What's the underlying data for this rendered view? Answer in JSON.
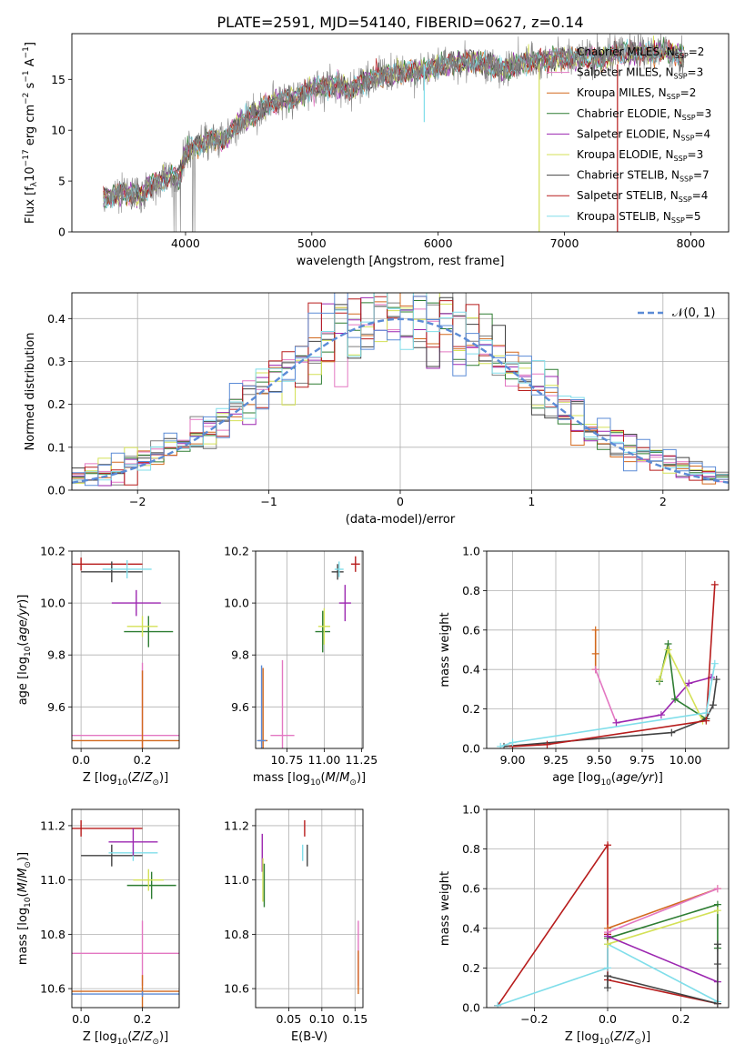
{
  "figure_title": "PLATE=2591, MJD=54140, FIBERID=0627, z=0.14",
  "model_colors": {
    "Chabrier MILES": "#7f7f7f",
    "Salpeter MILES": "#e377c2",
    "Kroupa MILES": "#d2691e",
    "Chabrier ELODIE": "#2e7d32",
    "Salpeter ELODIE": "#9c27b0",
    "Kroupa ELODIE": "#d4e157",
    "Chabrier STELIB": "#424242",
    "Salpeter STELIB": "#b71c1c",
    "Kroupa STELIB": "#80deea"
  },
  "chart_data": [
    {
      "id": "spectrum",
      "type": "line",
      "xlabel": "wavelength [Angstrom, rest frame]",
      "ylabel": "Flux [f_λ 10^-17 erg cm^-2 s^-1 A^-1]",
      "xlim": [
        3100,
        8300
      ],
      "ylim": [
        0,
        19.5
      ],
      "xticks": [
        4000,
        5000,
        6000,
        7000,
        8000
      ],
      "yticks": [
        0,
        5,
        10,
        15
      ],
      "legend_position": "top-right",
      "data_series": {
        "name": "data",
        "color": "#808080"
      },
      "continuum_knots": [
        [
          3350,
          3.2
        ],
        [
          3500,
          3.8
        ],
        [
          3650,
          3.6
        ],
        [
          3720,
          4.5
        ],
        [
          3800,
          5.0
        ],
        [
          3880,
          5.5
        ],
        [
          3950,
          5.2
        ],
        [
          4000,
          7.8
        ],
        [
          4100,
          8.5
        ],
        [
          4200,
          9.2
        ],
        [
          4300,
          9.0
        ],
        [
          4400,
          10.5
        ],
        [
          4500,
          11.3
        ],
        [
          4700,
          12.8
        ],
        [
          4860,
          13.2
        ],
        [
          5000,
          14.1
        ],
        [
          5200,
          14.4
        ],
        [
          5300,
          14.0
        ],
        [
          5500,
          15.3
        ],
        [
          5700,
          15.6
        ],
        [
          5900,
          15.9
        ],
        [
          6100,
          16.6
        ],
        [
          6300,
          16.8
        ],
        [
          6500,
          16.0
        ],
        [
          6700,
          16.7
        ],
        [
          6900,
          17.0
        ],
        [
          7100,
          17.1
        ],
        [
          7300,
          17.0
        ],
        [
          7400,
          17.5
        ],
        [
          7600,
          17.6
        ],
        [
          7800,
          17.7
        ],
        [
          7950,
          17.4
        ]
      ],
      "model_legend": [
        {
          "label": "Chabrier MILES, N_SSP=2",
          "color": "#7f7f7f",
          "label_main": "Chabrier MILES, N",
          "label_sub": "SSP",
          "label_tail": "=2"
        },
        {
          "label": "Salpeter MILES, N_SSP=3",
          "color": "#e377c2",
          "label_main": "Salpeter MILES, N",
          "label_sub": "SSP",
          "label_tail": "=3"
        },
        {
          "label": "Kroupa MILES, N_SSP=2",
          "color": "#d2691e",
          "label_main": "Kroupa MILES, N",
          "label_sub": "SSP",
          "label_tail": "=2"
        },
        {
          "label": "Chabrier ELODIE, N_SSP=3",
          "color": "#2e7d32",
          "label_main": "Chabrier ELODIE, N",
          "label_sub": "SSP",
          "label_tail": "=3"
        },
        {
          "label": "Salpeter ELODIE, N_SSP=4",
          "color": "#9c27b0",
          "label_main": "Salpeter ELODIE, N",
          "label_sub": "SSP",
          "label_tail": "=4"
        },
        {
          "label": "Kroupa ELODIE, N_SSP=3",
          "color": "#d4e157",
          "label_main": "Kroupa ELODIE, N",
          "label_sub": "SSP",
          "label_tail": "=3"
        },
        {
          "label": "Chabrier STELIB, N_SSP=7",
          "color": "#424242",
          "label_main": "Chabrier STELIB, N",
          "label_sub": "SSP",
          "label_tail": "=7"
        },
        {
          "label": "Salpeter STELIB, N_SSP=4",
          "color": "#b71c1c",
          "label_main": "Salpeter STELIB, N",
          "label_sub": "SSP",
          "label_tail": "=4"
        },
        {
          "label": "Kroupa STELIB, N_SSP=5",
          "color": "#80deea",
          "label_main": "Kroupa STELIB, N",
          "label_sub": "SSP",
          "label_tail": "=5"
        }
      ]
    },
    {
      "id": "residuals",
      "type": "line",
      "xlabel": "(data-model)/error",
      "ylabel": "Normed distribution",
      "xlim": [
        -2.5,
        2.5
      ],
      "ylim": [
        0,
        0.46
      ],
      "xticks": [
        -2,
        -1,
        0,
        1,
        2
      ],
      "yticks": [
        0.0,
        0.1,
        0.2,
        0.3,
        0.4
      ],
      "grid": true,
      "legend_position": "top-right",
      "reference_curve": {
        "label": "𝒩(0, 1)",
        "color": "#5b8bd6",
        "style": "dashed"
      },
      "histogram": {
        "bin_edges_range": [
          -2.5,
          2.5
        ],
        "n_bins": 50,
        "envelope": "gaussian N(0,1) with noise",
        "series_colors": [
          "#7f7f7f",
          "#e377c2",
          "#d2691e",
          "#2e7d32",
          "#9c27b0",
          "#d4e157",
          "#424242",
          "#b71c1c",
          "#80deea",
          "#5b8bd6"
        ]
      }
    },
    {
      "id": "age_vs_Z",
      "type": "scatter",
      "xlabel": "Z [log10(Z/Z⊙)]",
      "ylabel": "age [log10(age/yr)]",
      "xlim": [
        -0.03,
        0.32
      ],
      "ylim": [
        9.44,
        10.2
      ],
      "xticks": [
        0.0,
        0.2
      ],
      "yticks": [
        9.6,
        9.8,
        10.0,
        10.2
      ],
      "grid": true,
      "points": [
        {
          "x": 0.0,
          "y": 10.15,
          "xerr": 0.2,
          "yerr": 0.025,
          "color": "#b71c1c"
        },
        {
          "x": 0.1,
          "y": 10.12,
          "xerr": 0.1,
          "yerr": 0.04,
          "color": "#424242"
        },
        {
          "x": 0.15,
          "y": 10.13,
          "xerr": 0.08,
          "yerr": 0.035,
          "color": "#80deea"
        },
        {
          "x": 0.18,
          "y": 10.0,
          "xerr": 0.08,
          "yerr": 0.05,
          "color": "#9c27b0"
        },
        {
          "x": 0.22,
          "y": 9.89,
          "xerr": 0.08,
          "yerr": 0.06,
          "color": "#2e7d32"
        },
        {
          "x": 0.2,
          "y": 9.91,
          "xerr": 0.05,
          "yerr": 0.04,
          "color": "#d4e157"
        },
        {
          "x": 0.2,
          "y": 9.49,
          "xerr": 0.25,
          "yerr": 0.28,
          "color": "#e377c2"
        },
        {
          "x": 0.2,
          "y": 9.47,
          "xerr": 0.25,
          "yerr": 0.27,
          "color": "#d2691e"
        }
      ]
    },
    {
      "id": "age_vs_mass",
      "type": "scatter",
      "xlabel": "mass [log10(M/M⊙)]",
      "ylabel": "",
      "xlim": [
        10.54,
        11.26
      ],
      "ylim": [
        9.44,
        10.2
      ],
      "xticks": [
        10.75,
        11.0,
        11.25
      ],
      "yticks": [
        9.6,
        9.8,
        10.0,
        10.2
      ],
      "grid": true,
      "points": [
        {
          "x": 11.21,
          "y": 10.15,
          "xerr": 0.03,
          "yerr": 0.03,
          "color": "#b71c1c"
        },
        {
          "x": 11.09,
          "y": 10.12,
          "xerr": 0.04,
          "yerr": 0.03,
          "color": "#424242"
        },
        {
          "x": 11.1,
          "y": 10.13,
          "xerr": 0.03,
          "yerr": 0.03,
          "color": "#80deea"
        },
        {
          "x": 11.14,
          "y": 10.0,
          "xerr": 0.04,
          "yerr": 0.07,
          "color": "#9c27b0"
        },
        {
          "x": 10.99,
          "y": 9.89,
          "xerr": 0.05,
          "yerr": 0.08,
          "color": "#2e7d32"
        },
        {
          "x": 11.0,
          "y": 9.91,
          "xerr": 0.04,
          "yerr": 0.07,
          "color": "#d4e157"
        },
        {
          "x": 10.72,
          "y": 9.49,
          "xerr": 0.08,
          "yerr": 0.29,
          "color": "#e377c2"
        },
        {
          "x": 10.59,
          "y": 9.47,
          "xerr": 0.03,
          "yerr": 0.28,
          "color": "#d2691e"
        },
        {
          "x": 10.58,
          "y": 9.47,
          "xerr": 0.03,
          "yerr": 0.29,
          "color": "#5b8bd6"
        }
      ]
    },
    {
      "id": "mass_weight_vs_age",
      "type": "line",
      "xlabel": "age [log10(age/yr)]",
      "ylabel": "mass weight",
      "xlim": [
        8.85,
        10.25
      ],
      "ylim": [
        0,
        1
      ],
      "xticks": [
        9.0,
        9.25,
        9.5,
        9.75,
        10.0
      ],
      "yticks": [
        0.0,
        0.2,
        0.4,
        0.6,
        0.8,
        1.0
      ],
      "grid": true,
      "series": [
        {
          "name": "Kroupa MILES",
          "color": "#d2691e",
          "x": [
            9.48,
            9.48,
            9.48
          ],
          "y": [
            0.6,
            0.48,
            0.4
          ]
        },
        {
          "name": "Salpeter MILES",
          "color": "#e377c2",
          "x": [
            9.48,
            9.6
          ],
          "y": [
            0.4,
            0.13
          ]
        },
        {
          "name": "Salpeter ELODIE",
          "color": "#9c27b0",
          "x": [
            9.6,
            9.86,
            10.02,
            10.15
          ],
          "y": [
            0.13,
            0.17,
            0.33,
            0.36
          ]
        },
        {
          "name": "Chabrier ELODIE",
          "color": "#2e7d32",
          "x": [
            9.85,
            9.9,
            9.94,
            10.12
          ],
          "y": [
            0.34,
            0.53,
            0.25,
            0.15
          ]
        },
        {
          "name": "Kroupa ELODIE",
          "color": "#d4e157",
          "x": [
            9.85,
            9.9,
            10.1
          ],
          "y": [
            0.35,
            0.5,
            0.14
          ]
        },
        {
          "name": "Chabrier STELIB",
          "color": "#424242",
          "x": [
            8.95,
            9.92,
            10.12,
            10.16,
            10.18
          ],
          "y": [
            0.01,
            0.08,
            0.15,
            0.22,
            0.35
          ]
        },
        {
          "name": "Salpeter STELIB",
          "color": "#b71c1c",
          "x": [
            9.0,
            9.2,
            10.12,
            10.17
          ],
          "y": [
            0.01,
            0.02,
            0.14,
            0.83
          ]
        },
        {
          "name": "Kroupa STELIB",
          "color": "#80deea",
          "x": [
            8.93,
            9.0,
            10.12,
            10.17
          ],
          "y": [
            0.01,
            0.03,
            0.18,
            0.43
          ]
        }
      ]
    },
    {
      "id": "mass_vs_Z",
      "type": "scatter",
      "xlabel": "Z [log10(Z/Z⊙)]",
      "ylabel": "mass [log10(M/M⊙)]",
      "xlim": [
        -0.03,
        0.32
      ],
      "ylim": [
        10.53,
        11.26
      ],
      "xticks": [
        0.0,
        0.2
      ],
      "yticks": [
        10.6,
        10.8,
        11.0,
        11.2
      ],
      "grid": true,
      "points": [
        {
          "x": 0.0,
          "y": 11.19,
          "xerr": 0.2,
          "yerr": 0.03,
          "color": "#b71c1c"
        },
        {
          "x": 0.1,
          "y": 11.09,
          "xerr": 0.1,
          "yerr": 0.04,
          "color": "#424242"
        },
        {
          "x": 0.17,
          "y": 11.1,
          "xerr": 0.08,
          "yerr": 0.03,
          "color": "#80deea"
        },
        {
          "x": 0.17,
          "y": 11.14,
          "xerr": 0.08,
          "yerr": 0.05,
          "color": "#9c27b0"
        },
        {
          "x": 0.23,
          "y": 10.98,
          "xerr": 0.08,
          "yerr": 0.05,
          "color": "#2e7d32"
        },
        {
          "x": 0.22,
          "y": 11.0,
          "xerr": 0.05,
          "yerr": 0.04,
          "color": "#d4e157"
        },
        {
          "x": 0.2,
          "y": 10.73,
          "xerr": 0.26,
          "yerr": 0.12,
          "color": "#e377c2"
        },
        {
          "x": 0.2,
          "y": 10.59,
          "xerr": 0.26,
          "yerr": 0.06,
          "color": "#d2691e"
        },
        {
          "x": 0.2,
          "y": 10.58,
          "xerr": 0.26,
          "yerr": 0.01,
          "color": "#5b8bd6"
        }
      ]
    },
    {
      "id": "mass_vs_EBV",
      "type": "scatter",
      "xlabel": "E(B-V)",
      "ylabel": "",
      "xlim": [
        0.0,
        0.162
      ],
      "ylim": [
        10.53,
        11.26
      ],
      "xticks": [
        0.05,
        0.1,
        0.15
      ],
      "yticks": [
        10.6,
        10.8,
        11.0,
        11.2
      ],
      "grid": true,
      "points": [
        {
          "x": 0.074,
          "y": 11.19,
          "xerr": 0.0,
          "yerr": 0.03,
          "color": "#b71c1c"
        },
        {
          "x": 0.078,
          "y": 11.09,
          "xerr": 0.0,
          "yerr": 0.04,
          "color": "#424242"
        },
        {
          "x": 0.071,
          "y": 11.1,
          "xerr": 0.0,
          "yerr": 0.03,
          "color": "#80deea"
        },
        {
          "x": 0.01,
          "y": 11.1,
          "xerr": 0.0,
          "yerr": 0.07,
          "color": "#9c27b0"
        },
        {
          "x": 0.011,
          "y": 11.0,
          "xerr": 0.0,
          "yerr": 0.08,
          "color": "#d4e157"
        },
        {
          "x": 0.013,
          "y": 10.98,
          "xerr": 0.0,
          "yerr": 0.08,
          "color": "#2e7d32"
        },
        {
          "x": 0.155,
          "y": 10.73,
          "xerr": 0.0,
          "yerr": 0.12,
          "color": "#e377c2"
        },
        {
          "x": 0.155,
          "y": 10.66,
          "xerr": 0.0,
          "yerr": 0.08,
          "color": "#d2691e"
        }
      ]
    },
    {
      "id": "mass_weight_vs_Z",
      "type": "line",
      "xlabel": "Z [log10(Z/Z⊙)]",
      "ylabel": "mass weight",
      "xlim": [
        -0.33,
        0.33
      ],
      "ylim": [
        0,
        1
      ],
      "xticks": [
        -0.2,
        0.0,
        0.2
      ],
      "yticks": [
        0.0,
        0.2,
        0.4,
        0.6,
        0.8,
        1.0
      ],
      "grid": true,
      "series": [
        {
          "name": "Salpeter STELIB",
          "color": "#b71c1c",
          "x": [
            -0.3,
            0.0,
            0.0,
            0.0,
            0.3
          ],
          "y": [
            0.01,
            0.82,
            0.37,
            0.14,
            0.02
          ]
        },
        {
          "name": "Kroupa STELIB",
          "color": "#80deea",
          "x": [
            -0.3,
            0.0,
            0.0,
            0.3
          ],
          "y": [
            0.01,
            0.2,
            0.32,
            0.03
          ]
        },
        {
          "name": "Kroupa MILES",
          "color": "#d2691e",
          "x": [
            0.0,
            0.3
          ],
          "y": [
            0.4,
            0.6
          ]
        },
        {
          "name": "Salpeter MILES",
          "color": "#e377c2",
          "x": [
            0.0,
            0.3
          ],
          "y": [
            0.38,
            0.6
          ]
        },
        {
          "name": "Chabrier ELODIE",
          "color": "#2e7d32",
          "x": [
            0.0,
            0.3,
            0.3
          ],
          "y": [
            0.35,
            0.52,
            0.3
          ]
        },
        {
          "name": "Kroupa ELODIE",
          "color": "#d4e157",
          "x": [
            0.0,
            0.3
          ],
          "y": [
            0.32,
            0.49
          ]
        },
        {
          "name": "Salpeter ELODIE",
          "color": "#9c27b0",
          "x": [
            0.0,
            0.3
          ],
          "y": [
            0.36,
            0.13
          ]
        },
        {
          "name": "Chabrier STELIB",
          "color": "#424242",
          "x": [
            0.0,
            0.0,
            0.3,
            0.3,
            0.3
          ],
          "y": [
            0.1,
            0.16,
            0.02,
            0.22,
            0.32
          ]
        }
      ]
    }
  ]
}
